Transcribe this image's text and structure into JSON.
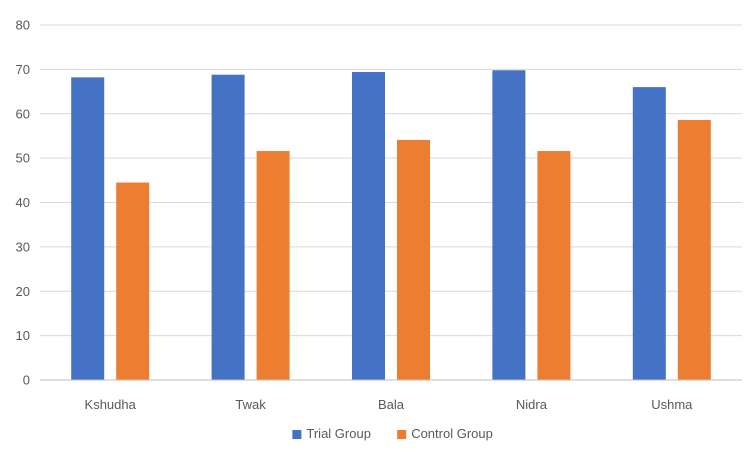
{
  "chart_data": {
    "type": "bar",
    "title": "",
    "xlabel": "",
    "ylabel": "",
    "categories": [
      "Kshudha",
      "Twak",
      "Bala",
      "Nidra",
      "Ushma"
    ],
    "series": [
      {
        "name": "Trial Group",
        "values": [
          68.2,
          68.8,
          69.4,
          69.8,
          66.0
        ],
        "color": "#4472C4"
      },
      {
        "name": "Control Group",
        "values": [
          44.5,
          51.6,
          54.1,
          51.6,
          58.6
        ],
        "color": "#ED7D31"
      }
    ],
    "ylim": [
      0,
      80
    ],
    "yticks": [
      "0",
      "10",
      "20",
      "30",
      "40",
      "50",
      "60",
      "70",
      "80"
    ],
    "grid": true,
    "gridline_color": "#D9D9D9",
    "legend_position": "bottom"
  }
}
